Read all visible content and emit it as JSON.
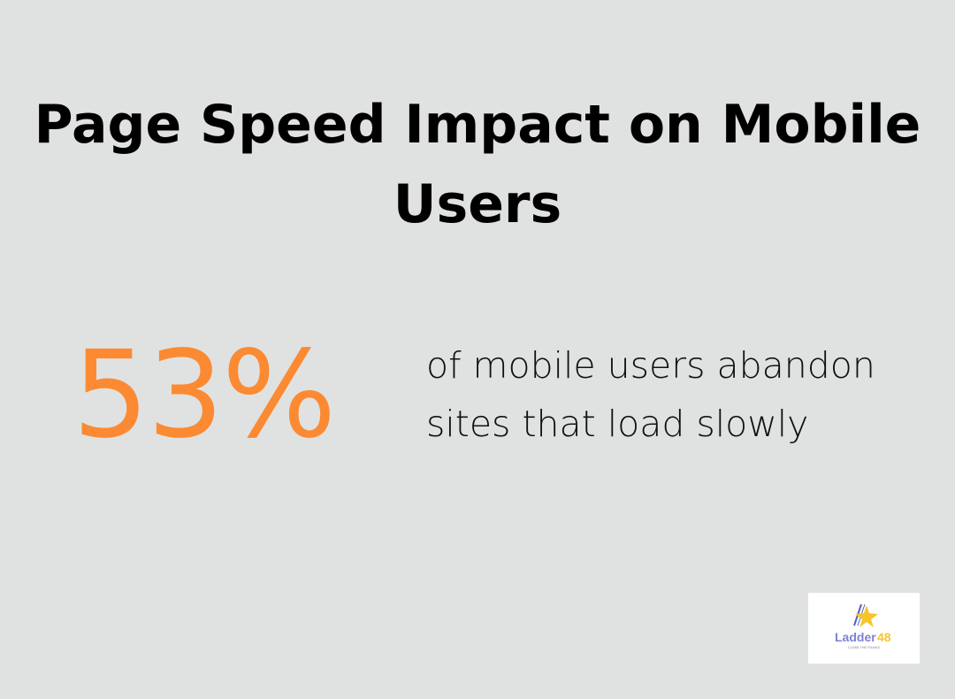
{
  "title": "Page Speed Impact on Mobile Users",
  "stat": {
    "value": "53%",
    "description": "of mobile users abandon sites that load slowly",
    "color": "#fb8a33"
  },
  "logo": {
    "name": "Ladder",
    "number": "48",
    "tagline": "CLIMB THE RANKS"
  }
}
